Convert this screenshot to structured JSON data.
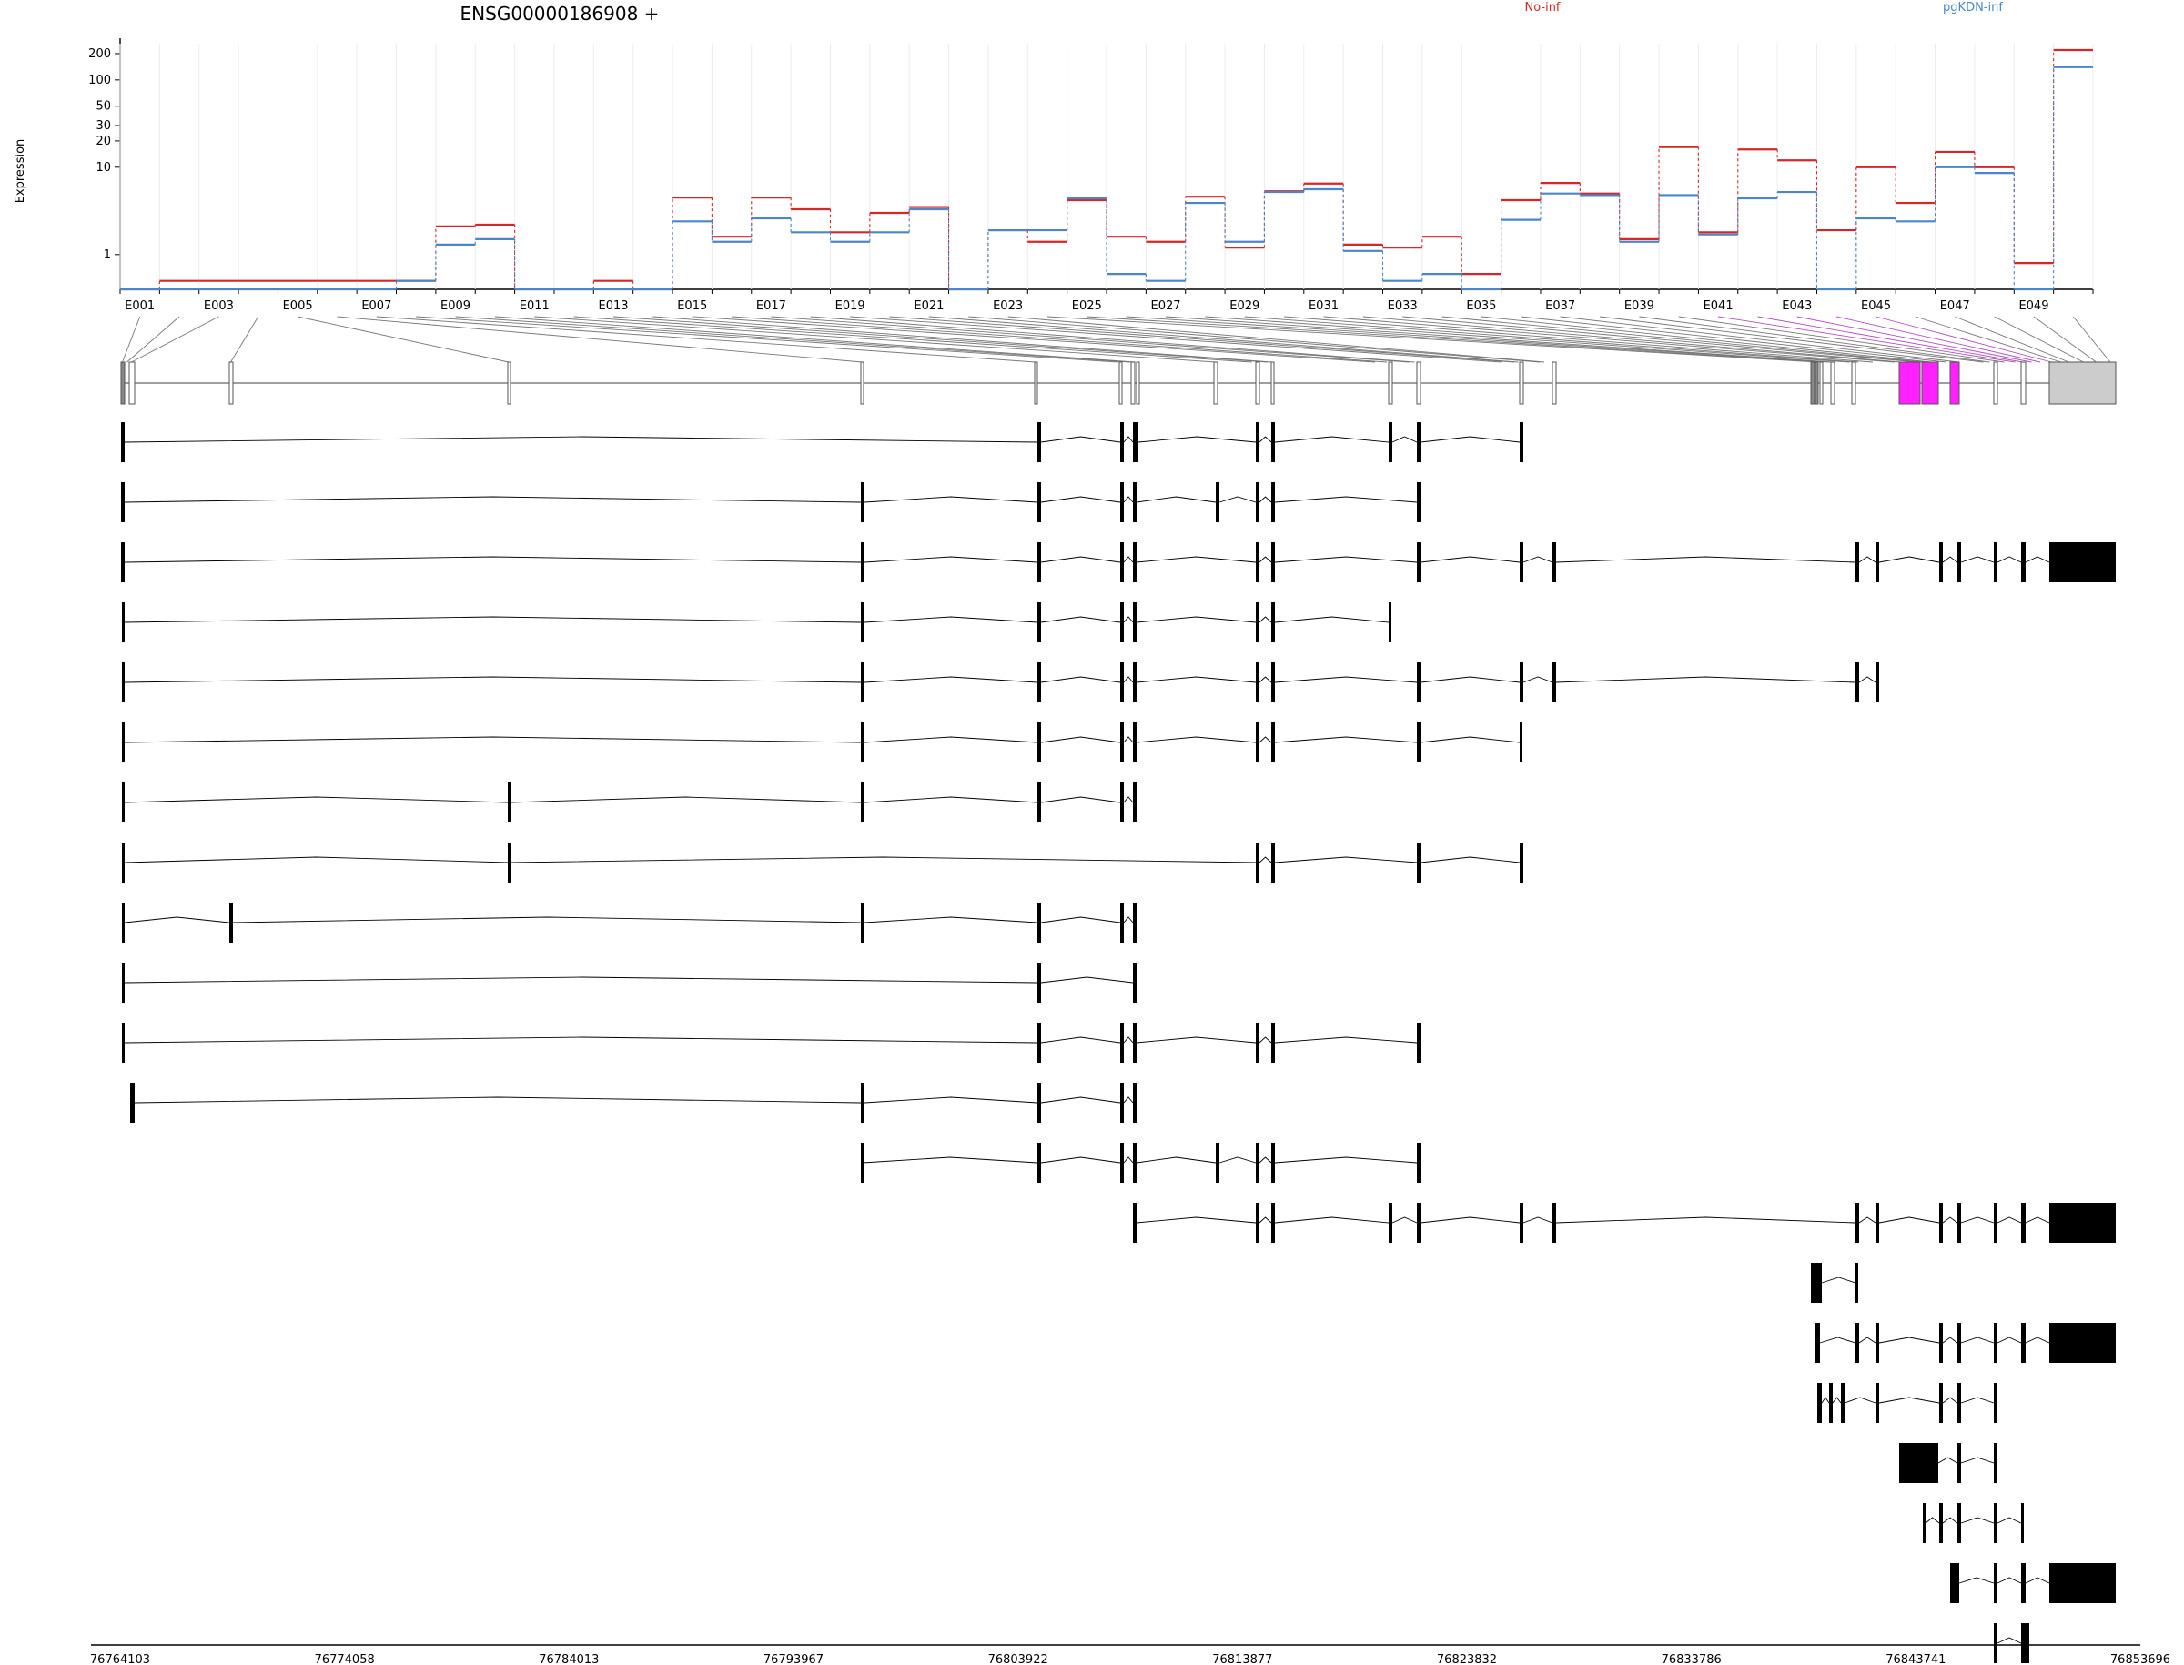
{
  "title": "ENSG00000186908 +",
  "ylabel": "Expression",
  "colors": {
    "no_inf": "#d62728",
    "pgkdn_inf": "#4a86c8",
    "highlight": "#ff22ff",
    "exon_box": "#ffffff",
    "last_box": "#cccccc"
  },
  "chart_data": {
    "type": "line",
    "title": "ENSG00000186908 +",
    "ylabel": "Expression",
    "yscale": "log",
    "yticks": [
      1,
      10,
      20,
      30,
      50,
      100,
      200
    ],
    "ylim": [
      0.4,
      260
    ],
    "legend": [
      {
        "name": "No-inf",
        "color": "#d62728"
      },
      {
        "name": "pgKDN-inf",
        "color": "#4a86c8"
      }
    ],
    "exon_labels_shown": [
      "E001",
      "E003",
      "E005",
      "E007",
      "E009",
      "E011",
      "E013",
      "E015",
      "E017",
      "E019",
      "E021",
      "E023",
      "E025",
      "E027",
      "E029",
      "E031",
      "E033",
      "E035",
      "E037",
      "E039",
      "E041",
      "E043",
      "E045",
      "E047",
      "E049"
    ],
    "series": [
      {
        "name": "No-inf",
        "values": [
          0.4,
          0.5,
          0.5,
          0.5,
          0.5,
          0.5,
          0.5,
          0.5,
          2.1,
          2.2,
          0.4,
          0.4,
          0.5,
          0.4,
          4.5,
          1.6,
          4.5,
          3.3,
          1.8,
          3.0,
          3.5,
          0.4,
          1.9,
          1.4,
          4.2,
          1.6,
          1.4,
          4.6,
          1.2,
          5.3,
          6.5,
          1.3,
          1.2,
          1.6,
          0.6,
          4.2,
          6.6,
          5.0,
          1.5,
          17,
          1.8,
          16,
          12,
          1.9,
          10,
          3.9,
          15,
          10,
          0.8,
          220
        ]
      },
      {
        "name": "pgKDN-inf",
        "values": [
          0.4,
          0.4,
          0.4,
          0.4,
          0.4,
          0.4,
          0.4,
          0.5,
          1.3,
          1.5,
          0.4,
          0.4,
          0.4,
          0.4,
          2.4,
          1.4,
          2.6,
          1.8,
          1.4,
          1.8,
          3.3,
          0.4,
          1.9,
          1.9,
          4.4,
          0.6,
          0.5,
          3.9,
          1.4,
          5.2,
          5.6,
          1.1,
          0.5,
          0.6,
          0.4,
          2.5,
          5.0,
          4.8,
          1.4,
          4.8,
          1.7,
          4.4,
          5.2,
          0.4,
          2.6,
          2.4,
          10,
          8.6,
          0.4,
          140
        ]
      }
    ],
    "genome_axis": {
      "ticks": [
        "76764103",
        "76774058",
        "76784013",
        "76793967",
        "76803922",
        "76813877",
        "76823832",
        "76833786",
        "76843741",
        "76853696"
      ]
    }
  }
}
